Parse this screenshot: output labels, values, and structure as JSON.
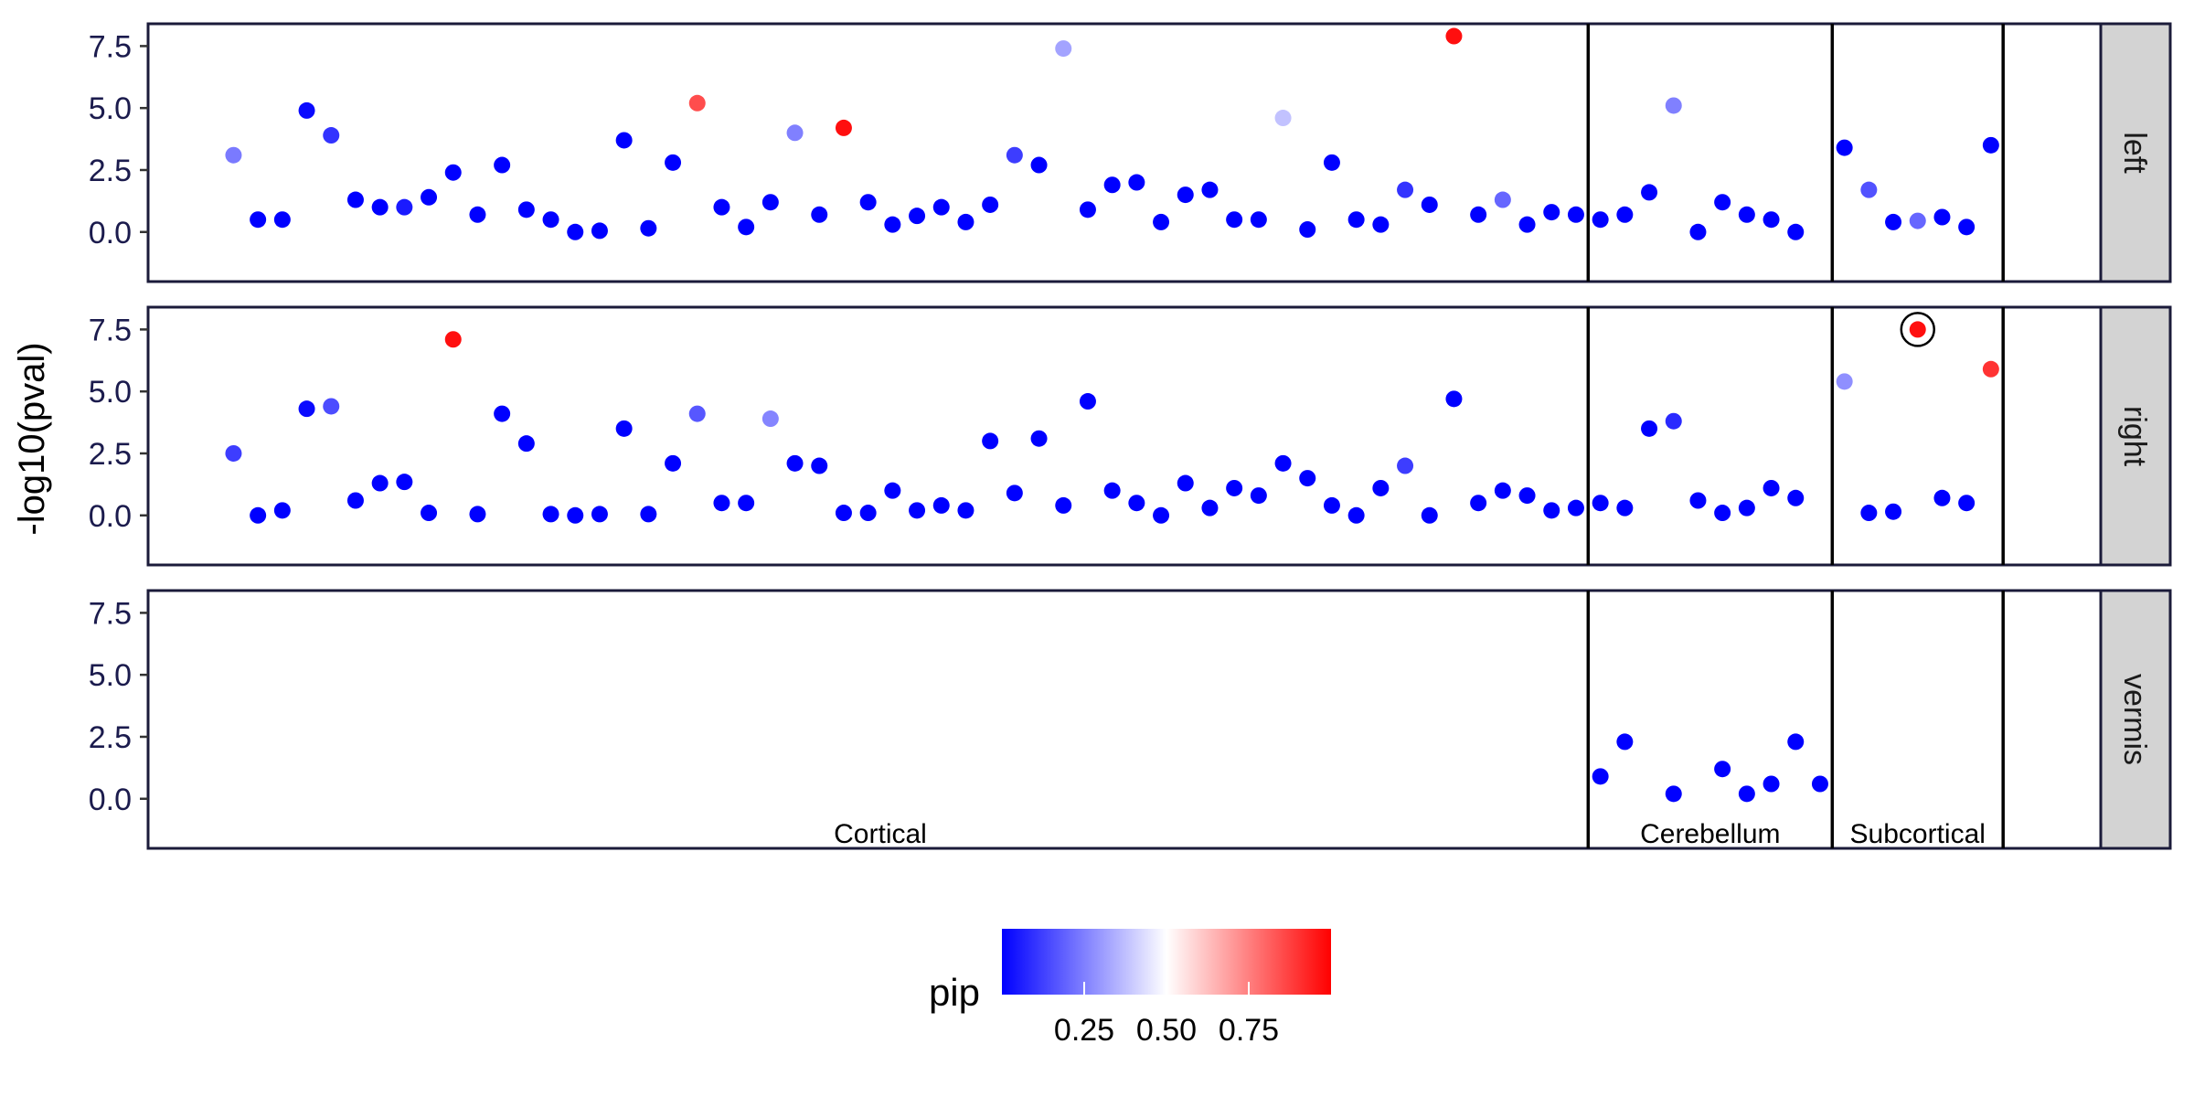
{
  "chart_data": {
    "type": "scatter",
    "ylabel": "-log10(pval)",
    "xlabel": "",
    "ylim": [
      -2.0,
      8.4
    ],
    "y_ticks": [
      0.0,
      2.5,
      5.0,
      7.5
    ],
    "y_tick_labels": [
      "0.0",
      "2.5",
      "5.0",
      "7.5"
    ],
    "x_range": [
      -2.5,
      77.5
    ],
    "facets": [
      "left",
      "right",
      "vermis"
    ],
    "group_boundaries": [
      56.5,
      66.5,
      73.5
    ],
    "x_groups": [
      {
        "label": "Cortical",
        "center": 27.5
      },
      {
        "label": "Cerebellum",
        "center": 61.5
      },
      {
        "label": "Subcortical",
        "center": 70
      }
    ],
    "color_scale": {
      "name": "pip",
      "low": "#0000ff",
      "mid": "#ffffff",
      "high": "#ff0000",
      "domain": [
        0,
        1
      ],
      "midpoint": 0.5,
      "ticks": [
        0.25,
        0.5,
        0.75
      ],
      "tick_labels": [
        "0.25",
        "0.50",
        "0.75"
      ]
    },
    "grid": false,
    "legend": "bottom",
    "highlight": {
      "facet": "right",
      "x": 70,
      "y": 7.5
    },
    "series": [
      {
        "facet": "left",
        "points": [
          [
            1,
            3.1,
            0.24
          ],
          [
            2,
            0.5,
            0.0
          ],
          [
            3,
            0.5,
            0.0
          ],
          [
            4,
            4.9,
            0.02
          ],
          [
            5,
            3.9,
            0.1
          ],
          [
            6,
            1.3,
            0.0
          ],
          [
            7,
            1.0,
            0.0
          ],
          [
            8,
            1.0,
            0.05
          ],
          [
            9,
            1.4,
            0.0
          ],
          [
            10,
            2.4,
            0.0
          ],
          [
            11,
            0.7,
            0.0
          ],
          [
            12,
            2.7,
            0.0
          ],
          [
            13,
            0.9,
            0.0
          ],
          [
            14,
            0.5,
            0.0
          ],
          [
            15,
            0.0,
            0.0
          ],
          [
            16,
            0.05,
            0.0
          ],
          [
            17,
            3.7,
            0.0
          ],
          [
            18,
            0.15,
            0.0
          ],
          [
            19,
            2.8,
            0.0
          ],
          [
            20,
            5.2,
            0.85
          ],
          [
            21,
            1.0,
            0.0
          ],
          [
            22,
            0.2,
            0.0
          ],
          [
            23,
            1.2,
            0.0
          ],
          [
            24,
            4.0,
            0.25
          ],
          [
            25,
            0.7,
            0.0
          ],
          [
            26,
            4.2,
            0.97
          ],
          [
            27,
            1.2,
            0.0
          ],
          [
            28,
            0.3,
            0.0
          ],
          [
            29,
            0.65,
            0.0
          ],
          [
            30,
            1.0,
            0.0
          ],
          [
            31,
            0.4,
            0.0
          ],
          [
            32,
            1.1,
            0.0
          ],
          [
            33,
            3.1,
            0.12
          ],
          [
            34,
            2.7,
            0.0
          ],
          [
            35,
            7.4,
            0.32
          ],
          [
            36,
            0.9,
            0.0
          ],
          [
            37,
            1.9,
            0.0
          ],
          [
            38,
            2.0,
            0.0
          ],
          [
            39,
            0.4,
            0.0
          ],
          [
            40,
            1.5,
            0.0
          ],
          [
            41,
            1.7,
            0.0
          ],
          [
            42,
            0.5,
            0.0
          ],
          [
            43,
            0.5,
            0.0
          ],
          [
            44,
            4.6,
            0.38
          ],
          [
            45,
            0.1,
            0.0
          ],
          [
            46,
            2.8,
            0.0
          ],
          [
            47,
            0.5,
            0.0
          ],
          [
            48,
            0.3,
            0.0
          ],
          [
            49,
            1.7,
            0.1
          ],
          [
            50,
            1.1,
            0.0
          ],
          [
            51,
            7.9,
            0.97
          ],
          [
            52,
            0.7,
            0.0
          ],
          [
            53,
            1.3,
            0.2
          ],
          [
            54,
            0.3,
            0.0
          ],
          [
            55,
            0.8,
            0.0
          ],
          [
            56,
            0.7,
            0.0
          ],
          [
            57,
            0.5,
            0.0
          ],
          [
            58,
            0.7,
            0.0
          ],
          [
            59,
            1.6,
            0.0
          ],
          [
            60,
            5.1,
            0.25
          ],
          [
            61,
            0.0,
            0.0
          ],
          [
            62,
            1.2,
            0.0
          ],
          [
            63,
            0.7,
            0.0
          ],
          [
            64,
            0.5,
            0.0
          ],
          [
            65,
            0.0,
            0.0
          ],
          [
            67,
            3.4,
            0.0
          ],
          [
            68,
            1.7,
            0.16
          ],
          [
            69,
            0.4,
            0.0
          ],
          [
            70,
            0.45,
            0.2
          ],
          [
            71,
            0.6,
            0.0
          ],
          [
            72,
            0.2,
            0.0
          ],
          [
            73,
            3.5,
            0.0
          ]
        ]
      },
      {
        "facet": "right",
        "points": [
          [
            1,
            2.5,
            0.12
          ],
          [
            2,
            0.0,
            0.0
          ],
          [
            3,
            0.2,
            0.0
          ],
          [
            4,
            4.3,
            0.02
          ],
          [
            5,
            4.4,
            0.15
          ],
          [
            6,
            0.6,
            0.0
          ],
          [
            7,
            1.3,
            0.0
          ],
          [
            8,
            1.35,
            0.0
          ],
          [
            9,
            0.1,
            0.0
          ],
          [
            10,
            7.1,
            0.97
          ],
          [
            11,
            0.05,
            0.0
          ],
          [
            12,
            4.1,
            0.0
          ],
          [
            13,
            2.9,
            0.0
          ],
          [
            14,
            0.05,
            0.0
          ],
          [
            15,
            0.0,
            0.0
          ],
          [
            16,
            0.05,
            0.0
          ],
          [
            17,
            3.5,
            0.0
          ],
          [
            18,
            0.05,
            0.0
          ],
          [
            19,
            2.1,
            0.0
          ],
          [
            20,
            4.1,
            0.17
          ],
          [
            21,
            0.5,
            0.0
          ],
          [
            22,
            0.5,
            0.0
          ],
          [
            23,
            3.9,
            0.26
          ],
          [
            24,
            2.1,
            0.0
          ],
          [
            25,
            2.0,
            0.0
          ],
          [
            26,
            0.1,
            0.0
          ],
          [
            27,
            0.1,
            0.0
          ],
          [
            28,
            1.0,
            0.0
          ],
          [
            29,
            0.2,
            0.0
          ],
          [
            30,
            0.4,
            0.0
          ],
          [
            31,
            0.2,
            0.0
          ],
          [
            32,
            3.0,
            0.0
          ],
          [
            33,
            0.9,
            0.0
          ],
          [
            34,
            3.1,
            0.0
          ],
          [
            35,
            0.4,
            0.0
          ],
          [
            36,
            4.6,
            0.0
          ],
          [
            37,
            1.0,
            0.0
          ],
          [
            38,
            0.5,
            0.0
          ],
          [
            39,
            0.0,
            0.0
          ],
          [
            40,
            1.3,
            0.0
          ],
          [
            41,
            0.3,
            0.0
          ],
          [
            42,
            1.1,
            0.0
          ],
          [
            43,
            0.8,
            0.0
          ],
          [
            44,
            2.1,
            0.0
          ],
          [
            45,
            1.5,
            0.0
          ],
          [
            46,
            0.4,
            0.0
          ],
          [
            47,
            0.0,
            0.0
          ],
          [
            48,
            1.1,
            0.0
          ],
          [
            49,
            2.0,
            0.12
          ],
          [
            50,
            0.0,
            0.0
          ],
          [
            51,
            4.7,
            0.0
          ],
          [
            52,
            0.5,
            0.0
          ],
          [
            53,
            1.0,
            0.0
          ],
          [
            54,
            0.8,
            0.0
          ],
          [
            55,
            0.2,
            0.0
          ],
          [
            56,
            0.3,
            0.0
          ],
          [
            57,
            0.5,
            0.0
          ],
          [
            58,
            0.3,
            0.0
          ],
          [
            59,
            3.5,
            0.0
          ],
          [
            60,
            3.8,
            0.08
          ],
          [
            61,
            0.6,
            0.0
          ],
          [
            62,
            0.1,
            0.0
          ],
          [
            63,
            0.3,
            0.0
          ],
          [
            64,
            1.1,
            0.0
          ],
          [
            65,
            0.7,
            0.0
          ],
          [
            67,
            5.4,
            0.28
          ],
          [
            68,
            0.1,
            0.0
          ],
          [
            69,
            0.15,
            0.0
          ],
          [
            70,
            7.5,
            0.97
          ],
          [
            71,
            0.7,
            0.0
          ],
          [
            72,
            0.5,
            0.0
          ],
          [
            73,
            5.9,
            0.9
          ]
        ]
      },
      {
        "facet": "vermis",
        "points": [
          [
            57,
            0.9,
            0.0
          ],
          [
            58,
            2.3,
            0.0
          ],
          [
            60,
            0.2,
            0.0
          ],
          [
            62,
            1.2,
            0.0
          ],
          [
            63,
            0.2,
            0.0
          ],
          [
            64,
            0.6,
            0.0
          ],
          [
            65,
            2.3,
            0.0
          ],
          [
            66,
            0.6,
            0.0
          ]
        ]
      }
    ]
  }
}
